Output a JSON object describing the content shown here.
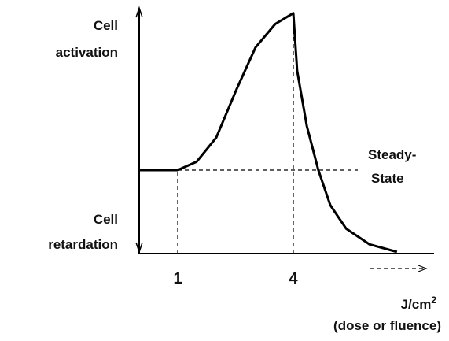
{
  "chart_data": {
    "type": "line",
    "x": [
      0,
      1,
      1.49,
      2,
      2.51,
      3.02,
      3.53,
      4,
      4.1,
      4.35,
      4.65,
      4.96,
      5.37,
      5.98,
      6.69
    ],
    "series": [
      {
        "color": "#000000",
        "values": [
          0,
          0,
          0.1,
          0.39,
          0.95,
          1.47,
          1.75,
          1.88,
          1.19,
          0.53,
          0,
          -0.42,
          -0.7,
          -0.89,
          -0.98
        ]
      }
    ],
    "xlim": [
      0,
      7.6
    ],
    "ylim": [
      -1,
      1.9
    ],
    "xticks": [
      1,
      4
    ],
    "steady_state": 0,
    "annotations": {
      "top": [
        "Cell",
        "activation"
      ],
      "bottom": [
        "Cell",
        "retardation"
      ],
      "steady": [
        "Steady-",
        "State"
      ]
    },
    "xlabel": {
      "unit": "J/cm",
      "superscript": "2",
      "caption": "(dose or fluence)"
    }
  }
}
